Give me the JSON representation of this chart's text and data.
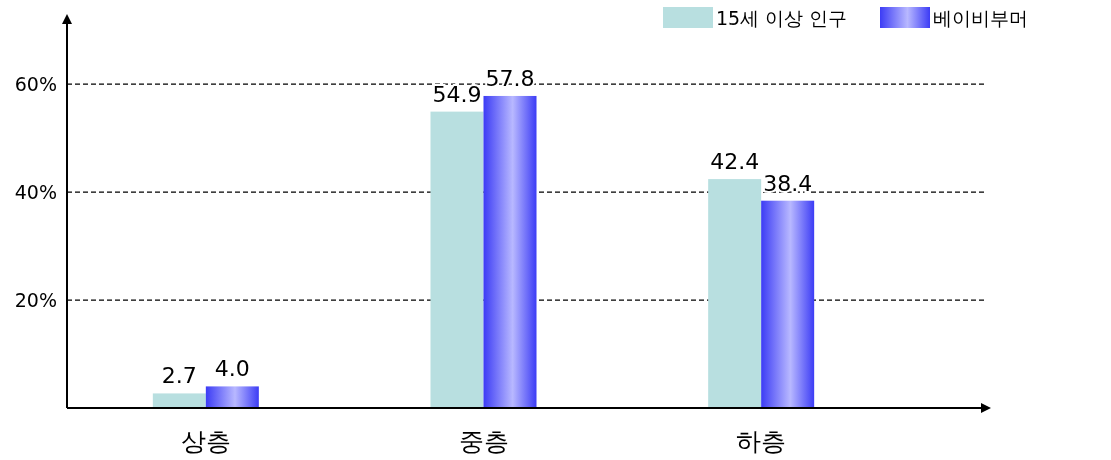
{
  "chart_data": {
    "type": "bar",
    "categories": [
      "상층",
      "중층",
      "하층"
    ],
    "series": [
      {
        "name": "15세 이상 인구",
        "color": "#b8dfe0",
        "values": [
          2.7,
          54.9,
          42.4
        ],
        "value_labels": [
          "2.7",
          "54.9",
          "42.4"
        ]
      },
      {
        "name": "베이비부머",
        "color": "#3c3cf5",
        "values": [
          4.0,
          57.8,
          38.4
        ],
        "value_labels": [
          "4.0",
          "57.8",
          "38.4"
        ]
      }
    ],
    "ylim": [
      0,
      71.5
    ],
    "yticks": [
      {
        "value": 20,
        "label": "20%"
      },
      {
        "value": 40,
        "label": "40%"
      },
      {
        "value": 60,
        "label": "60%"
      }
    ],
    "grid": "y",
    "line_style": "dashed",
    "legend": "top right"
  }
}
